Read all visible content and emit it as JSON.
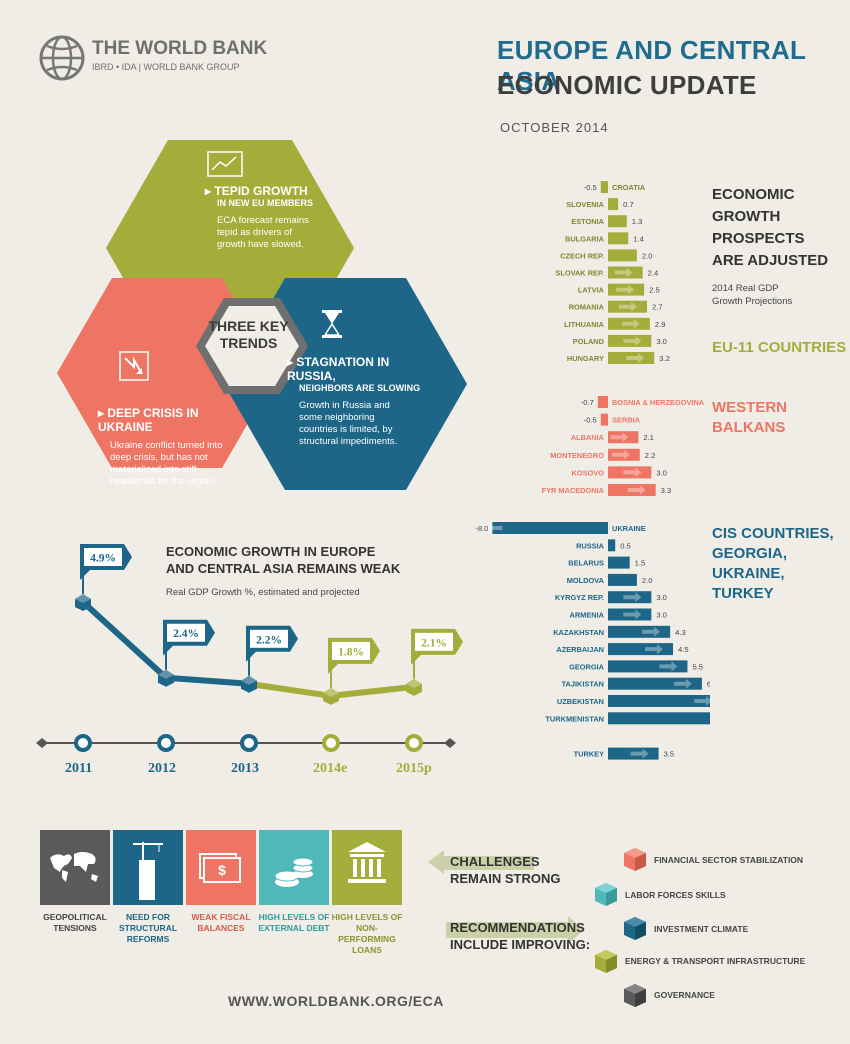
{
  "header": {
    "org_name": "THE WORLD BANK",
    "org_sub": "IBRD • IDA | WORLD BANK GROUP",
    "title_line1": "EUROPE AND CENTRAL ASIA",
    "title_line2": "ECONOMIC UPDATE",
    "date": "OCTOBER 2014"
  },
  "trends": {
    "center": "THREE KEY TRENDS",
    "tepid": {
      "title": "TEPID GROWTH",
      "sub": "IN NEW EU MEMBERS",
      "body": "ECA forecast remains tepid as drivers of growth have slowed."
    },
    "crisis": {
      "title": "DEEP CRISIS IN UKRAINE",
      "body": "Ukraine conflict turned into deep crisis, but has not materialized into stiff headwinds for the region."
    },
    "stagnation": {
      "title": "STAGNATION IN RUSSIA,",
      "sub": "NEIGHBORS ARE SLOWING",
      "body": "Growth in Russia and some neighboring countries is limited, by structural impediments."
    },
    "colors": {
      "green": "#a4ad3a",
      "coral": "#ee7563",
      "teal": "#1d6688"
    }
  },
  "line_chart": {
    "title_line1": "ECONOMIC GROWTH IN EUROPE",
    "title_line2": "AND CENTRAL ASIA REMAINS WEAK",
    "subtitle": "Real GDP Growth %, estimated and projected"
  },
  "bar_chart": {
    "title_lines": [
      "ECONOMIC",
      "GROWTH",
      "PROSPECTS",
      "ARE ADJUSTED"
    ],
    "subtitle_lines": [
      "2014 Real GDP",
      "Growth Projections"
    ],
    "groups": {
      "eu": "EU-11 COUNTRIES",
      "wb_line1": "WESTERN",
      "wb_line2": "BALKANS",
      "cis_line1": "CIS COUNTRIES,",
      "cis_line2": "GEORGIA, UKRAINE,",
      "cis_line3": "TURKEY"
    }
  },
  "chart_data": [
    {
      "type": "line",
      "x": [
        "2011",
        "2012",
        "2013",
        "2014e",
        "2015p"
      ],
      "series": [
        {
          "values": [
            4.9,
            2.4,
            2.2,
            1.8,
            2.1
          ]
        }
      ],
      "labels": [
        "4.9%",
        "2.4%",
        "2.2%",
        "1.8%",
        "2.1%"
      ],
      "colors": {
        "actual": "#1d6688",
        "projected": "#a4ad3a"
      }
    },
    {
      "type": "bar",
      "orientation": "horizontal",
      "groups": [
        {
          "name": "EU-11 COUNTRIES",
          "color": "#a4ad3a",
          "categories": [
            "CROATIA",
            "SLOVENIA",
            "ESTONIA",
            "BULGARIA",
            "CZECH REP.",
            "SLOVAK REP.",
            "LATVIA",
            "ROMANIA",
            "LITHUANIA",
            "POLAND",
            "HUNGARY"
          ],
          "values": [
            -0.5,
            0.7,
            1.3,
            1.4,
            2.0,
            2.4,
            2.5,
            2.7,
            2.9,
            3.0,
            3.2
          ],
          "labels": [
            "-0.5",
            "0.7",
            "1.3",
            "1.4",
            "2.0",
            "2.4",
            "2.5",
            "2.7",
            "2.9",
            "3.0",
            "3.2"
          ]
        },
        {
          "name": "WESTERN BALKANS",
          "color": "#ee7563",
          "categories": [
            "BOSNIA & HERZEGOVINA",
            "SERBIA",
            "ALBANIA",
            "MONTENEGRO",
            "KOSOVO",
            "FYR MACEDONIA"
          ],
          "values": [
            -0.7,
            -0.5,
            2.1,
            2.2,
            3.0,
            3.3
          ],
          "labels": [
            "-0.7",
            "-0.5",
            "2.1",
            "2.2",
            "3.0",
            "3.3"
          ]
        },
        {
          "name": "CIS COUNTRIES, GEORGIA, UKRAINE, TURKEY",
          "color": "#1d6688",
          "categories": [
            "UKRAINE",
            "RUSSIA",
            "BELARUS",
            "MOLDOVA",
            "KYRGYZ REP.",
            "ARMENIA",
            "KAZAKHSTAN",
            "AZERBAIJAN",
            "GEORGIA",
            "TAJIKISTAN",
            "UZBEKISTAN",
            "TURKMENISTAN",
            "TURKEY"
          ],
          "values": [
            -8.0,
            0.5,
            1.5,
            2.0,
            3.0,
            3.0,
            4.3,
            4.5,
            5.5,
            6.5,
            7.9,
            10.4,
            3.5
          ],
          "labels": [
            "-8.0",
            "0.5",
            "1.5",
            "2.0",
            "3.0",
            "3.0",
            "4.3",
            "4.5",
            "5.5",
            "6.5",
            "7.9",
            "10.4",
            "3.5"
          ]
        }
      ]
    }
  ],
  "challenges": {
    "tiles": [
      {
        "label": "GEOPOLITICAL TENSIONS",
        "icon": "world-map-icon",
        "color": "#5a5a5a"
      },
      {
        "label": "NEED FOR STRUCTURAL REFORMS",
        "icon": "building-crane-icon",
        "color": "#1d6688"
      },
      {
        "label": "WEAK FISCAL BALANCES",
        "icon": "money-icon",
        "color": "#ee7563"
      },
      {
        "label": "HIGH LEVELS OF EXTERNAL DEBT",
        "icon": "coins-icon",
        "color": "#4fb8b8"
      },
      {
        "label": "HIGH LEVELS OF NON-PERFORMING LOANS",
        "icon": "bank-icon",
        "color": "#a4ad3a"
      }
    ],
    "challenges_line1": "CHALLENGES",
    "challenges_line2": "REMAIN STRONG",
    "recs_line1": "RECOMMENDATIONS",
    "recs_line2": "INCLUDE IMPROVING:",
    "recommendations": [
      {
        "label": "FINANCIAL SECTOR STABILIZATION",
        "color": "#ee7563"
      },
      {
        "label": "LABOR FORCES SKILLS",
        "color": "#4fb8b8"
      },
      {
        "label": "INVESTMENT CLIMATE",
        "color": "#1d6688"
      },
      {
        "label": "ENERGY & TRANSPORT INFRASTRUCTURE",
        "color": "#a4ad3a"
      },
      {
        "label": "GOVERNANCE",
        "color": "#5a5a5a"
      }
    ]
  },
  "footer": {
    "url": "WWW.WORLDBANK.ORG/ECA"
  }
}
